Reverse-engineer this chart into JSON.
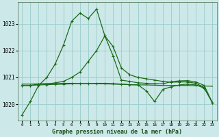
{
  "title": "Graphe pression niveau de la mer (hPa)",
  "background_color": "#cce8e8",
  "grid_color": "#99cccc",
  "line_color": "#1a6b1a",
  "x_labels": [
    "0",
    "1",
    "2",
    "3",
    "4",
    "5",
    "6",
    "7",
    "8",
    "9",
    "10",
    "11",
    "12",
    "13",
    "14",
    "15",
    "16",
    "17",
    "18",
    "19",
    "20",
    "21",
    "22",
    "23"
  ],
  "yticks": [
    1020,
    1021,
    1022,
    1023
  ],
  "ylim_low": 1019.4,
  "ylim_high": 1023.8,
  "series_steep": [
    1019.6,
    1020.1,
    1020.7,
    1021.0,
    1021.5,
    1022.2,
    1023.1,
    1023.4,
    1023.2,
    1023.55,
    1022.55,
    1021.8,
    1020.9,
    1020.85,
    1020.8,
    1020.78,
    1020.77,
    1020.76,
    1020.84,
    1020.87,
    1020.88,
    1020.83,
    1020.7,
    1020.05
  ],
  "series_broad": [
    1020.7,
    1020.7,
    1020.75,
    1020.75,
    1020.8,
    1020.85,
    1021.0,
    1021.2,
    1021.6,
    1022.0,
    1022.55,
    1022.15,
    1021.35,
    1021.1,
    1021.0,
    1020.95,
    1020.9,
    1020.85,
    1020.82,
    1020.83,
    1020.83,
    1020.78,
    1020.62,
    1020.05
  ],
  "series_dip": [
    1020.7,
    1020.7,
    1020.72,
    1020.73,
    1020.74,
    1020.75,
    1020.76,
    1020.77,
    1020.77,
    1020.78,
    1020.78,
    1020.77,
    1020.75,
    1020.73,
    1020.72,
    1020.5,
    1020.1,
    1020.55,
    1020.65,
    1020.72,
    1020.75,
    1020.72,
    1020.6,
    1020.05
  ],
  "series_flat": [
    1020.75,
    1020.75,
    1020.76,
    1020.77,
    1020.77,
    1020.78,
    1020.78,
    1020.77,
    1020.77,
    1020.76,
    1020.76,
    1020.75,
    1020.74,
    1020.73,
    1020.72,
    1020.72,
    1020.71,
    1020.7,
    1020.7,
    1020.7,
    1020.7,
    1020.69,
    1020.68,
    1020.67
  ]
}
